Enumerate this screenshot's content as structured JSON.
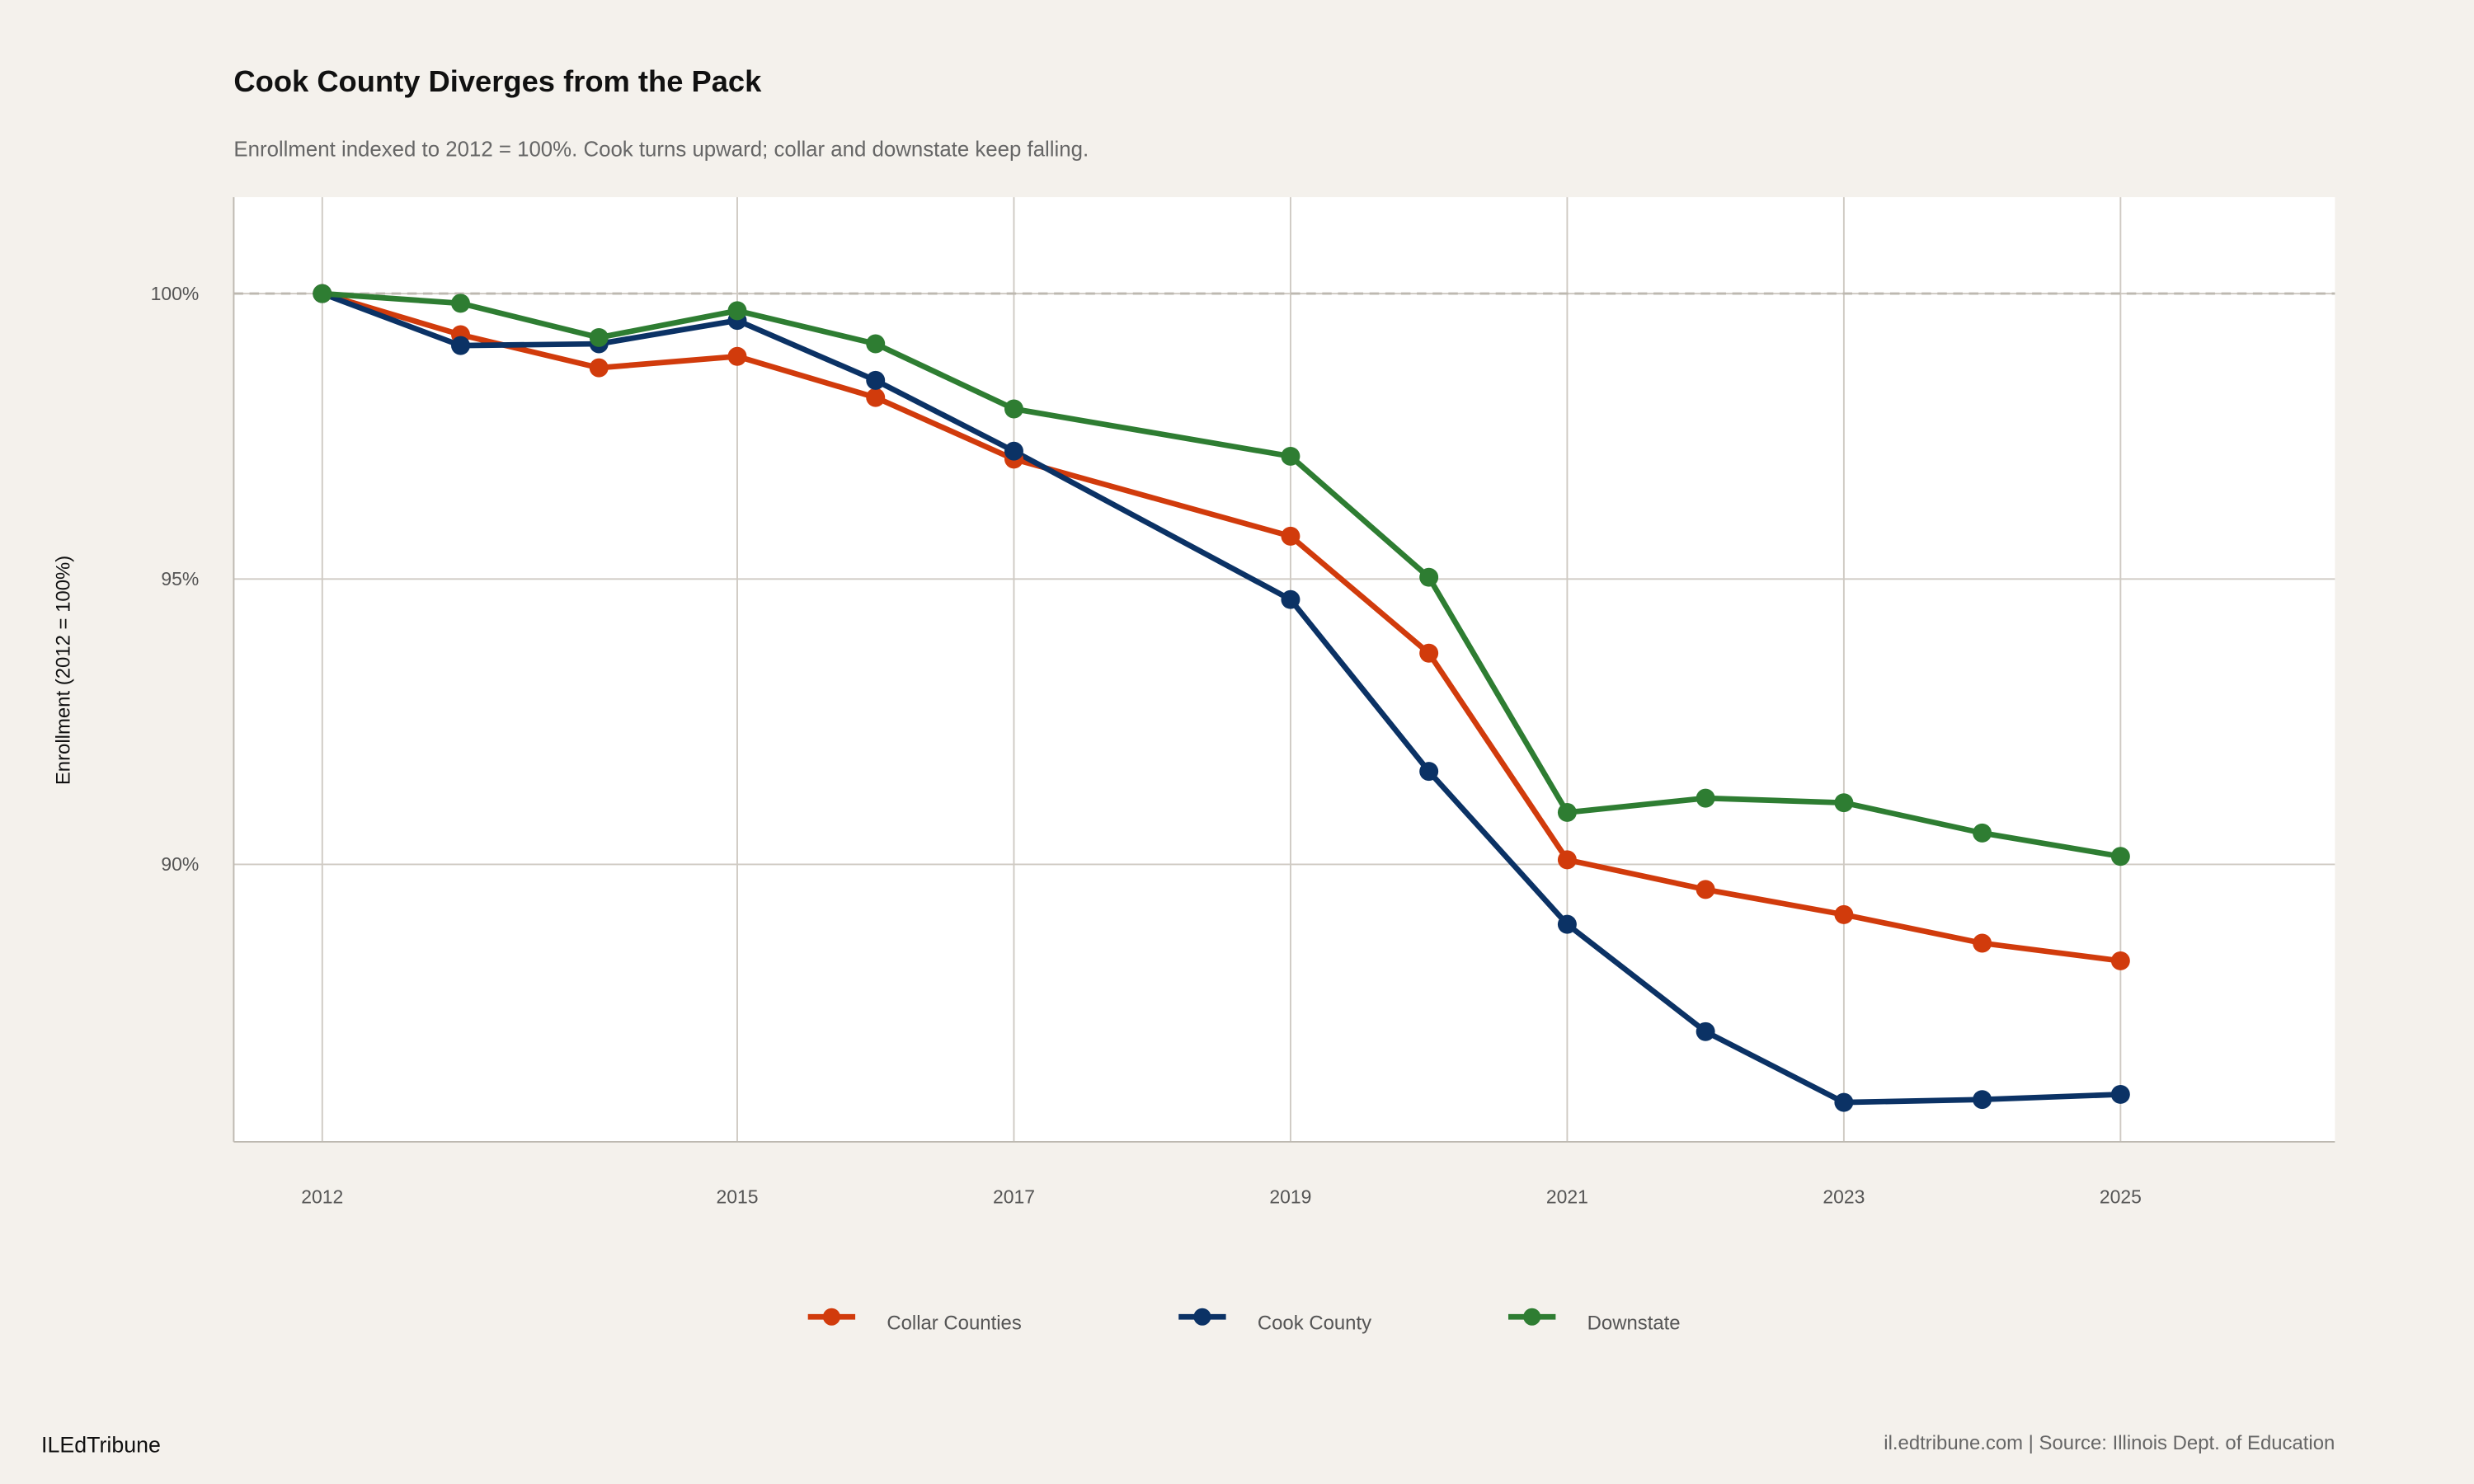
{
  "chart_data": {
    "type": "line",
    "title": "Cook County Diverges from the Pack",
    "subtitle": "Enrollment indexed to 2012 = 100%. Cook turns upward; collar and downstate keep falling.",
    "xlabel": "",
    "ylabel": "Enrollment (2012 = 100%)",
    "x": [
      2012,
      2013,
      2014,
      2015,
      2016,
      2017,
      2019,
      2020,
      2021,
      2022,
      2023,
      2024,
      2025
    ],
    "x_ticks": [
      "2012",
      "2015",
      "2017",
      "2019",
      "2021",
      "2023",
      "2025"
    ],
    "y_ticks": [
      "90%",
      "95%",
      "100%"
    ],
    "xlim": [
      2011.36,
      2026.55
    ],
    "ylim": [
      85.14,
      101.69
    ],
    "grid": true,
    "reference_line": {
      "y": 100,
      "style": "dashed"
    },
    "legend_position": "bottom",
    "series": [
      {
        "name": "Collar Counties",
        "color": "#d13b0c",
        "values": [
          100,
          99.28,
          98.7,
          98.9,
          98.18,
          97.1,
          95.75,
          93.7,
          90.08,
          89.56,
          89.12,
          88.62,
          88.31
        ]
      },
      {
        "name": "Cook County",
        "color": "#0b3265",
        "values": [
          100,
          99.09,
          99.12,
          99.53,
          98.48,
          97.24,
          94.64,
          91.63,
          88.95,
          87.07,
          85.83,
          85.88,
          85.97
        ]
      },
      {
        "name": "Downstate",
        "color": "#2e7d32",
        "values": [
          100,
          99.83,
          99.23,
          99.7,
          99.12,
          97.98,
          97.15,
          95.03,
          90.91,
          91.16,
          91.08,
          90.55,
          90.14
        ]
      }
    ]
  },
  "footer": {
    "brand": "ILEdTribune",
    "caption": "il.edtribune.com | Source: Illinois Dept. of Education"
  },
  "colors": {
    "background": "#f4f1ec",
    "panel": "#ffffff",
    "grid": "#cfcac3"
  }
}
